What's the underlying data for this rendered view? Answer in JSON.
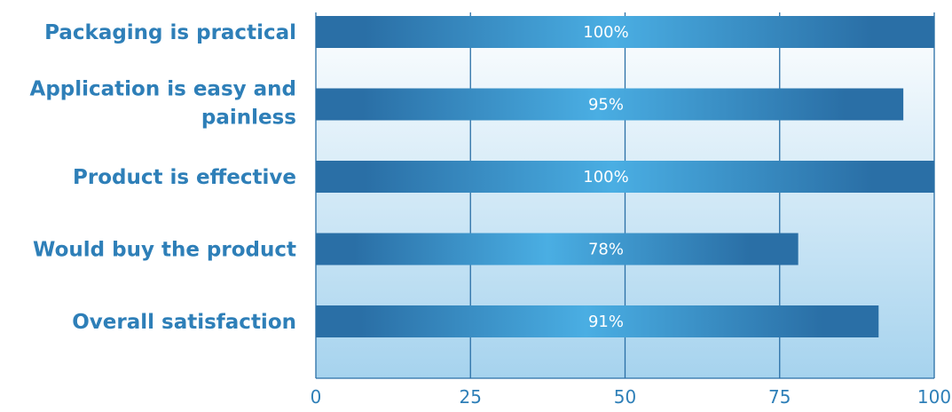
{
  "chart_data": {
    "type": "bar",
    "orientation": "horizontal",
    "categories": [
      [
        "Packaging is practical"
      ],
      [
        "Application is easy and",
        "painless"
      ],
      [
        "Product is effective"
      ],
      [
        "Would buy the product"
      ],
      [
        "Overall satisfaction"
      ]
    ],
    "values": [
      100,
      95,
      100,
      78,
      91
    ],
    "data_labels": [
      "100%",
      "95%",
      "100%",
      "78%",
      "91%"
    ],
    "xlim": [
      0,
      100
    ],
    "xticks": [
      0,
      25,
      50,
      75,
      100
    ],
    "xtick_labels": [
      "0",
      "25",
      "50",
      "75",
      "100"
    ],
    "grid": "vertical",
    "legend": "none"
  },
  "colors": {
    "bar_edge": "#2a6fa6",
    "bar_center": "#4aaee3",
    "label_text": "#2e7fb8",
    "grid": "#2a6fa6",
    "plot_bg_top": "#ffffff",
    "plot_bg_bottom": "#a6d3ee"
  }
}
